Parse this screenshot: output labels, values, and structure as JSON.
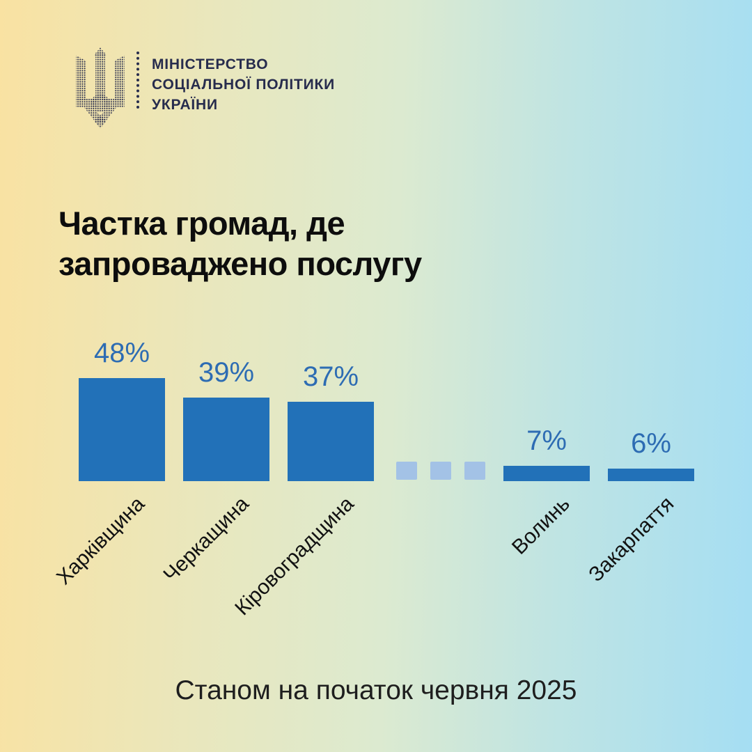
{
  "logo": {
    "icon": "ukraine-trident-dotted",
    "lines": [
      "МІНІСТЕРСТВО",
      "СОЦІАЛЬНОЇ ПОЛІТИКИ",
      "УКРАЇНИ"
    ]
  },
  "title": {
    "line1": "Частка громад, де",
    "line2": "запроваджено послугу"
  },
  "footer": {
    "text": "Станом на початок червня 2025"
  },
  "colors": {
    "bar": "#2271b8",
    "value_label": "#2d6cb3",
    "ellipsis_square": "#a3c2e6",
    "logo_navy": "#272c4d",
    "background_left": "#f9e2a2",
    "background_right": "#a5def3",
    "title_text": "#0d0d0d"
  },
  "chart_data": {
    "type": "bar",
    "title": "Частка громад, де запроваджено послугу",
    "categories": [
      "Харківщина",
      "Черкащина",
      "Кіровоградщина",
      "Волинь",
      "Закарпаття"
    ],
    "values": [
      48,
      39,
      37,
      7,
      6
    ],
    "value_labels": [
      "48%",
      "39%",
      "37%",
      "7%",
      "6%"
    ],
    "unit": "%",
    "ylim": [
      0,
      50
    ],
    "orientation": "vertical",
    "grid": false,
    "legend": false,
    "gap_marker": {
      "type": "squares",
      "count": 3,
      "after_category_index": 2
    },
    "note": "Станом на початок червня 2025",
    "category_label_rotation_deg": -45
  }
}
